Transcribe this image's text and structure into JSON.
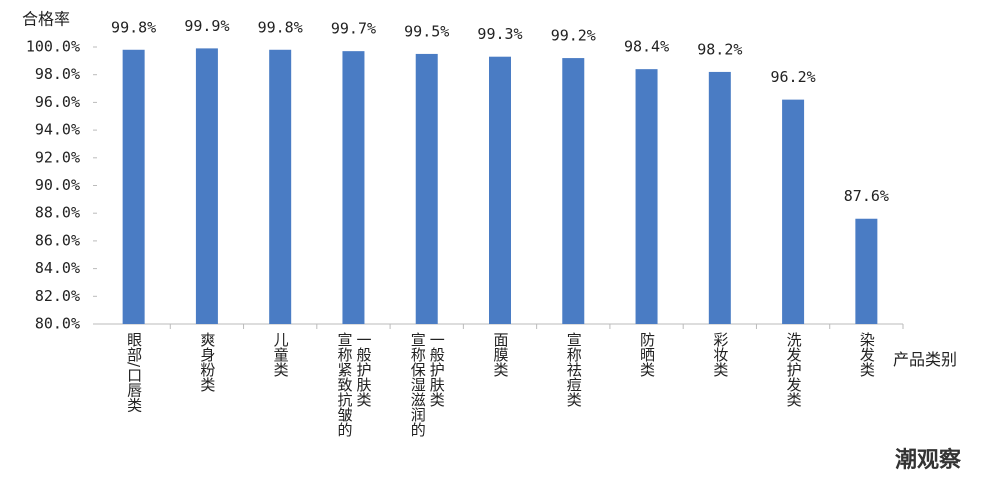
{
  "chart_data": {
    "type": "bar",
    "y_axis_label": "合格率",
    "x_axis_label": "产品类别",
    "watermark": "潮观察",
    "categories": [
      "眼部/口唇类",
      "爽身粉类",
      "儿童类",
      "宣称紧致抗皱的一般护肤类",
      "宣称保湿滋润的一般护肤类",
      "面膜类",
      "宣称祛痘类",
      "防晒类",
      "彩妆类",
      "洗发护发类",
      "染发类"
    ],
    "values": [
      99.8,
      99.9,
      99.8,
      99.7,
      99.5,
      99.3,
      99.2,
      98.4,
      98.2,
      96.2,
      87.6
    ],
    "value_labels": [
      "99.8%",
      "99.9%",
      "99.8%",
      "99.7%",
      "99.5%",
      "99.3%",
      "99.2%",
      "98.4%",
      "98.2%",
      "96.2%",
      "87.6%"
    ],
    "color": "#4a7cc4",
    "ylim": [
      80,
      100
    ],
    "yticks": [
      {
        "value": 80,
        "label": "80.0%"
      },
      {
        "value": 82,
        "label": "82.0%"
      },
      {
        "value": 84,
        "label": "84.0%"
      },
      {
        "value": 86,
        "label": "86.0%"
      },
      {
        "value": 88,
        "label": "88.0%"
      },
      {
        "value": 90,
        "label": "90.0%"
      },
      {
        "value": 92,
        "label": "92.0%"
      },
      {
        "value": 94,
        "label": "94.0%"
      },
      {
        "value": 96,
        "label": "96.0%"
      },
      {
        "value": 98,
        "label": "98.0%"
      },
      {
        "value": 100,
        "label": "100.0%"
      }
    ],
    "grid": false
  }
}
